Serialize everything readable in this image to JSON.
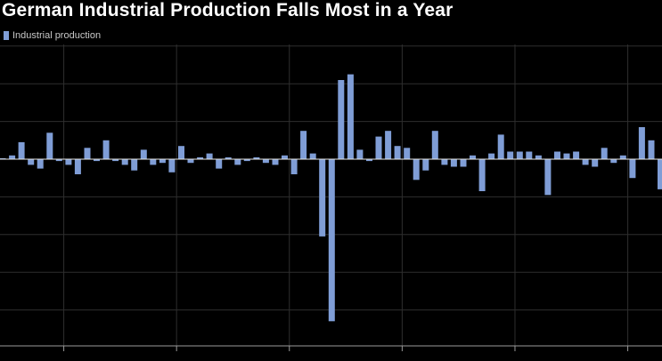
{
  "chart_data": {
    "type": "bar",
    "title": "German Industrial Production Falls Most in a Year",
    "legend_position": "top-left",
    "grid": true,
    "series": [
      {
        "name": "Industrial production",
        "color": "#7f9dd6",
        "values": [
          0.0,
          0.2,
          0.9,
          -0.3,
          -0.5,
          1.4,
          -0.1,
          -0.3,
          -0.8,
          0.6,
          -0.1,
          1.0,
          -0.1,
          -0.3,
          -0.6,
          0.5,
          -0.3,
          -0.2,
          -0.7,
          0.7,
          -0.2,
          0.1,
          0.3,
          -0.5,
          0.1,
          -0.3,
          -0.1,
          0.1,
          -0.2,
          -0.3,
          0.2,
          -0.8,
          1.5,
          0.3,
          -4.1,
          -8.6,
          4.2,
          4.5,
          0.5,
          -0.1,
          1.2,
          1.5,
          0.7,
          0.6,
          -1.1,
          -0.6,
          1.5,
          -0.3,
          -0.4,
          -0.4,
          0.2,
          -1.7,
          0.3,
          1.3,
          0.4,
          0.4,
          0.4,
          0.2,
          -1.9,
          0.4,
          0.3,
          0.4,
          -0.3,
          -0.4,
          0.6,
          -0.2,
          0.2,
          -1.0,
          1.7,
          1.0,
          -1.6
        ]
      }
    ],
    "ylim": [
      -10,
      8.5
    ],
    "y_gridlines": [
      -10,
      -8,
      -6,
      -4,
      -2,
      0,
      2,
      4,
      6,
      8
    ],
    "x_gridlines_at_bar": [
      6.5,
      18.5,
      30.5,
      42.5,
      54.5,
      66.5
    ],
    "xlabel": "",
    "ylabel": ""
  }
}
